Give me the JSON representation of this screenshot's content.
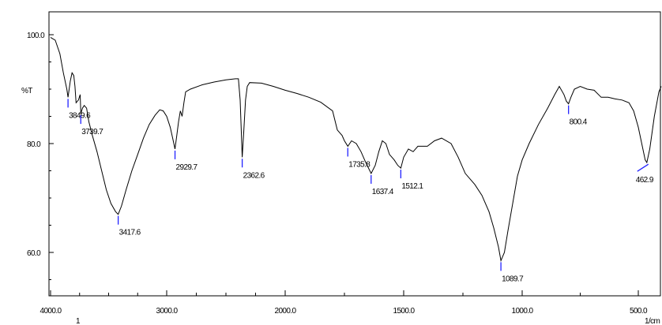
{
  "chart_data": {
    "type": "line",
    "title": "",
    "xlabel": "1/cm",
    "ylabel": "%T",
    "x_reversed": true,
    "xlim": [
      4000,
      400
    ],
    "ylim": [
      52,
      104
    ],
    "grid": false,
    "x_ticks": [
      {
        "value": 4000,
        "label": "4000.0"
      },
      {
        "value": 3000,
        "label": "3000.0"
      },
      {
        "value": 2000,
        "label": "2000.0"
      },
      {
        "value": 1500,
        "label": "1500.0"
      },
      {
        "value": 1000,
        "label": "1000.0"
      },
      {
        "value": 500,
        "label": "500.0"
      }
    ],
    "y_ticks": [
      {
        "value": 100,
        "label": "100.0"
      },
      {
        "value": 80,
        "label": "80.0"
      },
      {
        "value": 60,
        "label": "60.0"
      }
    ],
    "extra_axis_text": "1",
    "series": [
      {
        "color": "#000000",
        "points": [
          [
            4000,
            99.5
          ],
          [
            3960,
            99.0
          ],
          [
            3920,
            96.5
          ],
          [
            3890,
            93.0
          ],
          [
            3860,
            90.0
          ],
          [
            3849.6,
            88.5
          ],
          [
            3830,
            91.5
          ],
          [
            3815,
            93.0
          ],
          [
            3800,
            92.5
          ],
          [
            3790,
            90.5
          ],
          [
            3780,
            87.5
          ],
          [
            3760,
            88.0
          ],
          [
            3745,
            89.0
          ],
          [
            3739.7,
            85.5
          ],
          [
            3725,
            86.5
          ],
          [
            3710,
            87.0
          ],
          [
            3690,
            86.5
          ],
          [
            3670,
            84.0
          ],
          [
            3640,
            81.5
          ],
          [
            3600,
            78.5
          ],
          [
            3560,
            75.0
          ],
          [
            3520,
            71.5
          ],
          [
            3480,
            69.0
          ],
          [
            3440,
            67.5
          ],
          [
            3417.6,
            67.0
          ],
          [
            3390,
            68.5
          ],
          [
            3350,
            71.5
          ],
          [
            3300,
            75.0
          ],
          [
            3250,
            78.0
          ],
          [
            3200,
            81.0
          ],
          [
            3150,
            83.5
          ],
          [
            3100,
            85.2
          ],
          [
            3060,
            86.2
          ],
          [
            3030,
            86.0
          ],
          [
            3000,
            85.0
          ],
          [
            2970,
            83.0
          ],
          [
            2945,
            80.5
          ],
          [
            2929.7,
            79.0
          ],
          [
            2915,
            81.5
          ],
          [
            2900,
            84.0
          ],
          [
            2885,
            86.0
          ],
          [
            2870,
            85.0
          ],
          [
            2855,
            87.5
          ],
          [
            2840,
            89.5
          ],
          [
            2800,
            90.0
          ],
          [
            2700,
            90.8
          ],
          [
            2600,
            91.3
          ],
          [
            2500,
            91.7
          ],
          [
            2420,
            91.9
          ],
          [
            2395,
            91.9
          ],
          [
            2380,
            88.0
          ],
          [
            2370,
            82.0
          ],
          [
            2362.6,
            77.5
          ],
          [
            2350,
            82.0
          ],
          [
            2335,
            88.0
          ],
          [
            2320,
            90.5
          ],
          [
            2300,
            91.2
          ],
          [
            2200,
            91.1
          ],
          [
            2100,
            90.5
          ],
          [
            2000,
            89.8
          ],
          [
            1950,
            89.2
          ],
          [
            1900,
            88.5
          ],
          [
            1850,
            87.6
          ],
          [
            1800,
            86.0
          ],
          [
            1780,
            82.5
          ],
          [
            1760,
            81.5
          ],
          [
            1750,
            80.5
          ],
          [
            1735.8,
            79.5
          ],
          [
            1720,
            80.5
          ],
          [
            1700,
            80.0
          ],
          [
            1680,
            78.5
          ],
          [
            1660,
            76.5
          ],
          [
            1637.4,
            74.5
          ],
          [
            1620,
            76.0
          ],
          [
            1605,
            78.5
          ],
          [
            1590,
            80.5
          ],
          [
            1575,
            80.0
          ],
          [
            1560,
            78.0
          ],
          [
            1540,
            77.0
          ],
          [
            1525,
            76.0
          ],
          [
            1512.1,
            75.5
          ],
          [
            1500,
            77.5
          ],
          [
            1480,
            79.0
          ],
          [
            1460,
            78.5
          ],
          [
            1440,
            79.5
          ],
          [
            1400,
            79.5
          ],
          [
            1370,
            80.5
          ],
          [
            1340,
            81.0
          ],
          [
            1300,
            80.0
          ],
          [
            1270,
            77.5
          ],
          [
            1240,
            74.5
          ],
          [
            1200,
            72.5
          ],
          [
            1170,
            70.5
          ],
          [
            1140,
            67.5
          ],
          [
            1120,
            64.5
          ],
          [
            1100,
            61.0
          ],
          [
            1089.7,
            58.5
          ],
          [
            1075,
            60.0
          ],
          [
            1060,
            64.0
          ],
          [
            1040,
            69.0
          ],
          [
            1020,
            74.0
          ],
          [
            1000,
            77.0
          ],
          [
            970,
            80.0
          ],
          [
            930,
            83.5
          ],
          [
            890,
            86.5
          ],
          [
            860,
            89.0
          ],
          [
            840,
            90.5
          ],
          [
            820,
            89.0
          ],
          [
            810,
            87.8
          ],
          [
            800.4,
            87.3
          ],
          [
            790,
            88.5
          ],
          [
            775,
            90.0
          ],
          [
            750,
            90.5
          ],
          [
            720,
            90.0
          ],
          [
            690,
            89.8
          ],
          [
            660,
            88.5
          ],
          [
            630,
            88.5
          ],
          [
            600,
            88.2
          ],
          [
            570,
            88.0
          ],
          [
            540,
            87.5
          ],
          [
            520,
            86.0
          ],
          [
            500,
            83.0
          ],
          [
            480,
            79.0
          ],
          [
            470,
            77.0
          ],
          [
            462.9,
            76.5
          ],
          [
            450,
            79.0
          ],
          [
            430,
            85.0
          ],
          [
            410,
            89.5
          ],
          [
            400,
            90.5
          ]
        ]
      }
    ],
    "peaks": [
      {
        "x": 3849.6,
        "label": "3849.6"
      },
      {
        "x": 3739.7,
        "label": "3739.7"
      },
      {
        "x": 3417.6,
        "label": "3417.6"
      },
      {
        "x": 2929.7,
        "label": "2929.7"
      },
      {
        "x": 2362.6,
        "label": "2362.6"
      },
      {
        "x": 1735.8,
        "label": "1735.8"
      },
      {
        "x": 1637.4,
        "label": "1637.4"
      },
      {
        "x": 1512.1,
        "label": "1512.1"
      },
      {
        "x": 1089.7,
        "label": "1089.7"
      },
      {
        "x": 800.4,
        "label": "800.4"
      },
      {
        "x": 462.9,
        "label": "462.9"
      }
    ]
  },
  "colors": {
    "line": "#000000",
    "peak_marker": "#2222ff",
    "axis": "#000000",
    "background": "#ffffff"
  }
}
